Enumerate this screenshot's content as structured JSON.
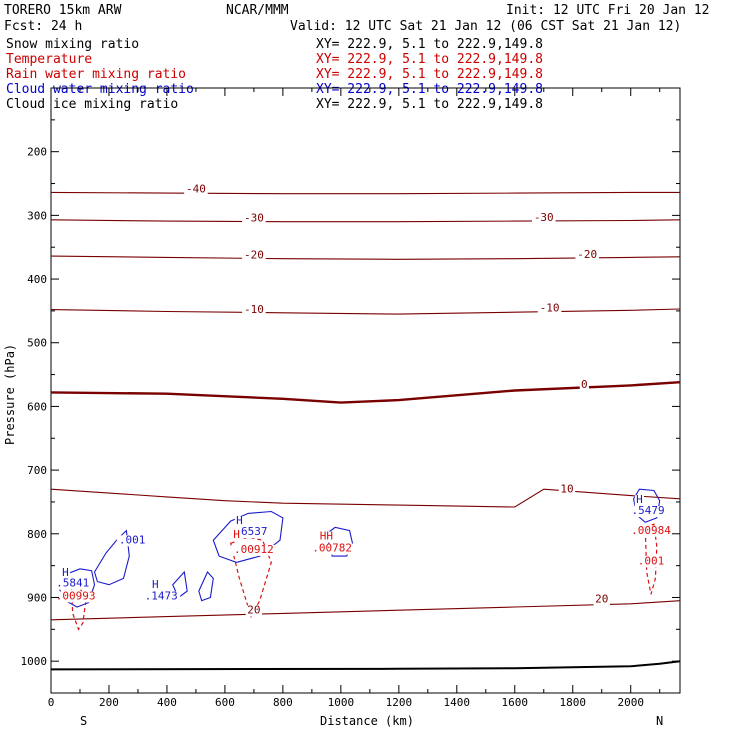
{
  "header": {
    "model": "TORERO  15km ARW",
    "org": "NCAR/MMM",
    "init": "Init: 12 UTC Fri 20 Jan 12",
    "fcst": "Fcst:   24 h",
    "valid": "Valid: 12 UTC Sat 21 Jan 12 (06 CST Sat 21 Jan 12)"
  },
  "fields": [
    {
      "name": "Snow mixing ratio",
      "xy": "",
      "color": "#000000"
    },
    {
      "name": "Temperature",
      "xy": "XY= 222.9,  5.1 to 222.9,149.8",
      "color": "#cc0000"
    },
    {
      "name": "Rain water mixing ratio",
      "xy": "XY= 222.9,  5.1 to 222.9,149.8",
      "color": "#cc0000"
    },
    {
      "name": "Cloud water mixing ratio",
      "xy": "XY= 222.9,  5.1 to 222.9,149.8",
      "color": "#0000cc"
    },
    {
      "name": "Cloud ice mixing ratio",
      "xy": "XY= 222.9,  5.1 to 222.9,149.8",
      "color": "#000000"
    }
  ],
  "snow_xy": "XY= 222.9,  5.1 to 222.9,149.8",
  "colors": {
    "temperature": "#7a0000",
    "rain": "#dd1111",
    "cloud": "#1a1acc",
    "ground": "#000000"
  },
  "chart_data": {
    "type": "line",
    "xlabel": "Distance (km)",
    "ylabel": "Pressure (hPa)",
    "xlim": [
      0,
      2170
    ],
    "ylim": [
      1050,
      100
    ],
    "x_ticks": [
      0,
      200,
      400,
      600,
      800,
      1000,
      1200,
      1400,
      1600,
      1800,
      2000
    ],
    "y_ticks": [
      200,
      300,
      400,
      500,
      600,
      700,
      800,
      900,
      1000
    ],
    "x_end_labels": {
      "left": "S",
      "right": "N"
    },
    "isotherms": [
      {
        "label": "-40",
        "x": [
          0,
          400,
          800,
          1200,
          1600,
          2000,
          2170
        ],
        "y": [
          264,
          265,
          266,
          266,
          265,
          264,
          264
        ]
      },
      {
        "label": "-30",
        "x": [
          0,
          400,
          800,
          1200,
          1600,
          2000,
          2170
        ],
        "y": [
          307,
          309,
          310,
          310,
          309,
          308,
          307
        ]
      },
      {
        "label": "-20",
        "x": [
          0,
          400,
          800,
          1200,
          1600,
          2000,
          2170
        ],
        "y": [
          364,
          366,
          368,
          369,
          368,
          366,
          365
        ]
      },
      {
        "label": "-10",
        "x": [
          0,
          400,
          800,
          1200,
          1600,
          2000,
          2170
        ],
        "y": [
          448,
          451,
          453,
          455,
          452,
          449,
          447
        ]
      },
      {
        "label": "0",
        "x": [
          0,
          400,
          800,
          1000,
          1200,
          1600,
          2000,
          2170
        ],
        "y": [
          578,
          580,
          588,
          594,
          590,
          575,
          567,
          562
        ]
      },
      {
        "label": "10",
        "x": [
          0,
          400,
          600,
          800,
          1200,
          1600,
          1700,
          2000,
          2170
        ],
        "y": [
          730,
          742,
          748,
          752,
          755,
          758,
          730,
          740,
          745
        ]
      },
      {
        "label": "20",
        "x": [
          0,
          400,
          800,
          1200,
          1600,
          2000,
          2170
        ],
        "y": [
          935,
          930,
          925,
          920,
          915,
          910,
          905
        ]
      }
    ],
    "extra_isotherm_labels": [
      {
        "label": "-40",
        "x": 500,
        "y": 264
      },
      {
        "label": "-30",
        "x": 700,
        "y": 310
      },
      {
        "label": "-30",
        "x": 1700,
        "y": 309
      },
      {
        "label": "-20",
        "x": 700,
        "y": 368
      },
      {
        "label": "-20",
        "x": 1850,
        "y": 367
      },
      {
        "label": "-10",
        "x": 700,
        "y": 453
      },
      {
        "label": "-10",
        "x": 1720,
        "y": 451
      },
      {
        "label": "0",
        "x": 1840,
        "y": 571
      },
      {
        "label": "10",
        "x": 1780,
        "y": 735
      },
      {
        "label": "20",
        "x": 700,
        "y": 925
      },
      {
        "label": "20",
        "x": 1900,
        "y": 908
      }
    ],
    "ground_pressure": {
      "x": [
        0,
        1200,
        1600,
        2000,
        2100,
        2170
      ],
      "y": [
        1013,
        1012,
        1011,
        1008,
        1004,
        1000
      ]
    },
    "cloud_water_labels": [
      {
        "label": "H",
        "x": 50,
        "y": 866
      },
      {
        "label": ".5841",
        "x": 75,
        "y": 883
      },
      {
        "label": ".001",
        "x": 280,
        "y": 815
      },
      {
        "label": "H",
        "x": 360,
        "y": 885
      },
      {
        "label": ".1473",
        "x": 380,
        "y": 903
      },
      {
        "label": "H",
        "x": 650,
        "y": 785
      },
      {
        "label": ".6537",
        "x": 690,
        "y": 802
      },
      {
        "label": "H",
        "x": 2030,
        "y": 752
      },
      {
        "label": ".5479",
        "x": 2060,
        "y": 769
      }
    ],
    "rain_labels": [
      {
        "label": ".00993",
        "x": 85,
        "y": 903
      },
      {
        "label": "H",
        "x": 640,
        "y": 807
      },
      {
        "label": ".00912",
        "x": 700,
        "y": 830
      },
      {
        "label": "HH",
        "x": 950,
        "y": 809
      },
      {
        "label": ".00782",
        "x": 970,
        "y": 828
      },
      {
        "label": ".00984",
        "x": 2070,
        "y": 800
      },
      {
        "label": ".001",
        "x": 2070,
        "y": 848
      }
    ],
    "cloud_water_regions": [
      {
        "x": [
          30,
          60,
          100,
          140,
          150,
          130,
          90,
          50,
          30
        ],
        "y": [
          888,
          862,
          855,
          858,
          880,
          908,
          915,
          905,
          888
        ]
      },
      {
        "x": [
          150,
          190,
          230,
          260,
          270,
          250,
          200,
          160,
          150
        ],
        "y": [
          860,
          830,
          808,
          795,
          835,
          870,
          880,
          875,
          860
        ]
      },
      {
        "x": [
          560,
          620,
          680,
          760,
          800,
          790,
          720,
          640,
          580,
          560
        ],
        "y": [
          810,
          780,
          768,
          765,
          775,
          810,
          835,
          845,
          835,
          810
        ]
      },
      {
        "x": [
          950,
          980,
          1030,
          1040,
          1020,
          970,
          950
        ],
        "y": [
          800,
          790,
          795,
          815,
          835,
          835,
          800
        ]
      },
      {
        "x": [
          2010,
          2030,
          2080,
          2100,
          2090,
          2050,
          2020,
          2010
        ],
        "y": [
          745,
          730,
          732,
          748,
          775,
          782,
          770,
          745
        ]
      },
      {
        "x": [
          420,
          460,
          470,
          440,
          420
        ],
        "y": [
          880,
          860,
          890,
          900,
          880
        ]
      },
      {
        "x": [
          510,
          540,
          560,
          550,
          520,
          510
        ],
        "y": [
          890,
          860,
          870,
          900,
          905,
          890
        ]
      }
    ],
    "rain_regions": [
      {
        "x": [
          70,
          90,
          120,
          110,
          95,
          75,
          70
        ],
        "y": [
          880,
          875,
          905,
          940,
          950,
          925,
          880
        ]
      },
      {
        "x": [
          620,
          680,
          730,
          760,
          720,
          690,
          650,
          620
        ],
        "y": [
          815,
          805,
          810,
          845,
          905,
          930,
          870,
          815
        ]
      },
      {
        "x": [
          2050,
          2080,
          2090,
          2085,
          2070,
          2055,
          2050
        ],
        "y": [
          790,
          785,
          820,
          870,
          895,
          860,
          790
        ]
      }
    ]
  }
}
